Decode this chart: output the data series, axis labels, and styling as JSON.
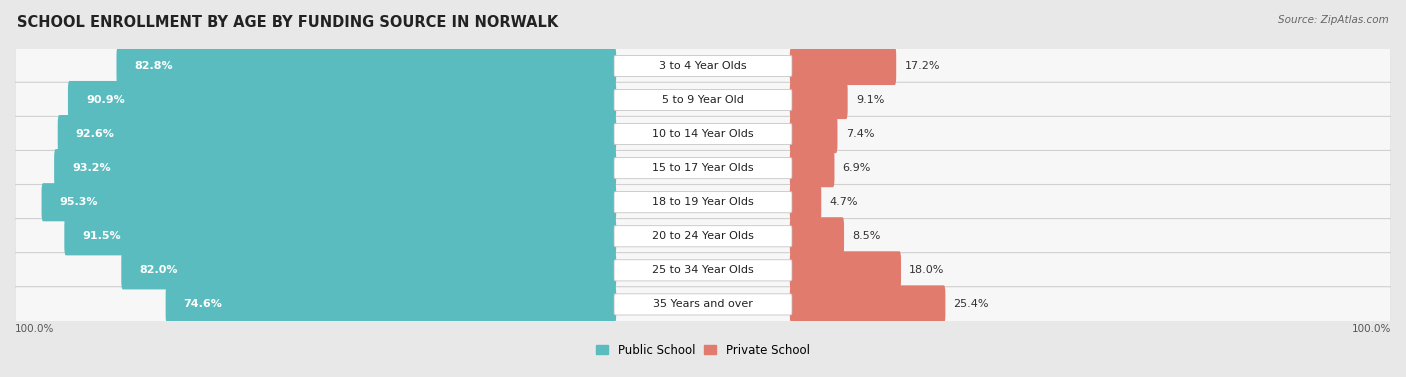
{
  "title": "SCHOOL ENROLLMENT BY AGE BY FUNDING SOURCE IN NORWALK",
  "source": "Source: ZipAtlas.com",
  "categories": [
    "3 to 4 Year Olds",
    "5 to 9 Year Old",
    "10 to 14 Year Olds",
    "15 to 17 Year Olds",
    "18 to 19 Year Olds",
    "20 to 24 Year Olds",
    "25 to 34 Year Olds",
    "35 Years and over"
  ],
  "public_values": [
    82.8,
    90.9,
    92.6,
    93.2,
    95.3,
    91.5,
    82.0,
    74.6
  ],
  "private_values": [
    17.2,
    9.1,
    7.4,
    6.9,
    4.7,
    8.5,
    18.0,
    25.4
  ],
  "public_color": "#5bbcbf",
  "private_color": "#e07b6e",
  "bg_color": "#e8e8e8",
  "row_bg_color": "#f7f7f7",
  "bar_height": 0.62,
  "title_fontsize": 10.5,
  "label_fontsize": 8,
  "value_fontsize": 8,
  "legend_fontsize": 8.5,
  "axis_label_left": "100.0%",
  "axis_label_right": "100.0%"
}
